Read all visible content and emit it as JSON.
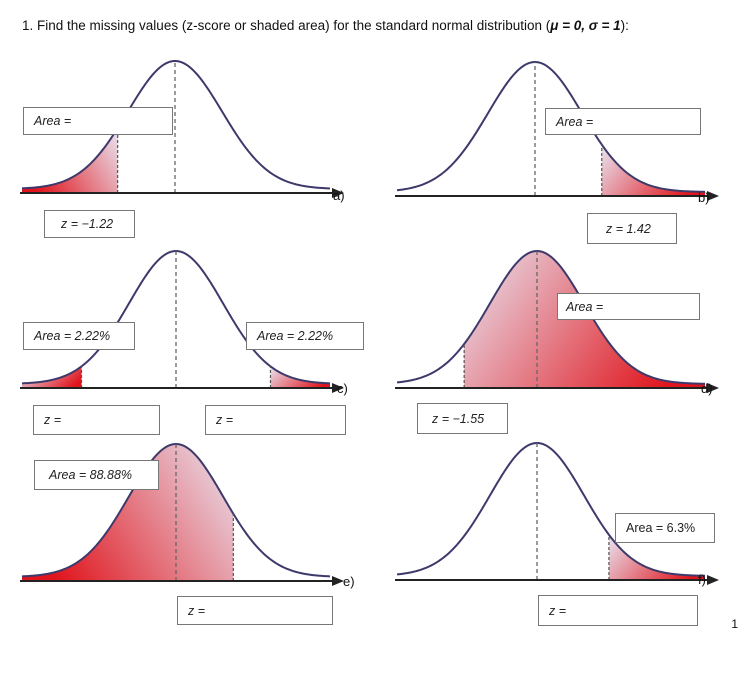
{
  "title": {
    "prefix": "1. Find the missing values (z-score or shaded area) for the standard normal distribution (",
    "params": "μ = 0, σ = 1",
    "suffix": "):"
  },
  "page_number": "1",
  "colors": {
    "curve": "#3d3a6b",
    "shade_dark": "#e0141c",
    "shade_light": "#e8d8e4",
    "axis": "#222222"
  },
  "panels": [
    {
      "id": "a",
      "label": "a)",
      "shade": "left",
      "z": -1.22,
      "area_text": "Area =",
      "z_text": "z = −1.22"
    },
    {
      "id": "b",
      "label": "b)",
      "shade": "right",
      "z": 1.42,
      "area_text": "Area =",
      "z_text": "z = 1.42"
    },
    {
      "id": "c",
      "label": "c)",
      "shade": "two-tail",
      "z": 2.01,
      "area_left_text": "Area = 2.22%",
      "area_right_text": "Area = 2.22%",
      "z_left_text": "z =",
      "z_right_text": "z ="
    },
    {
      "id": "d",
      "label": "d)",
      "shade": "right",
      "z": -1.55,
      "area_text": "Area =",
      "z_text": "z = −1.55"
    },
    {
      "id": "e",
      "label": "e)",
      "shade": "left",
      "z": 1.22,
      "area_text": "Area = 88.88%",
      "z_text": "z ="
    },
    {
      "id": "f",
      "label": "f)",
      "shade": "right",
      "z": 1.53,
      "area_text": "Area = 6.3%",
      "z_text": "z ="
    }
  ]
}
